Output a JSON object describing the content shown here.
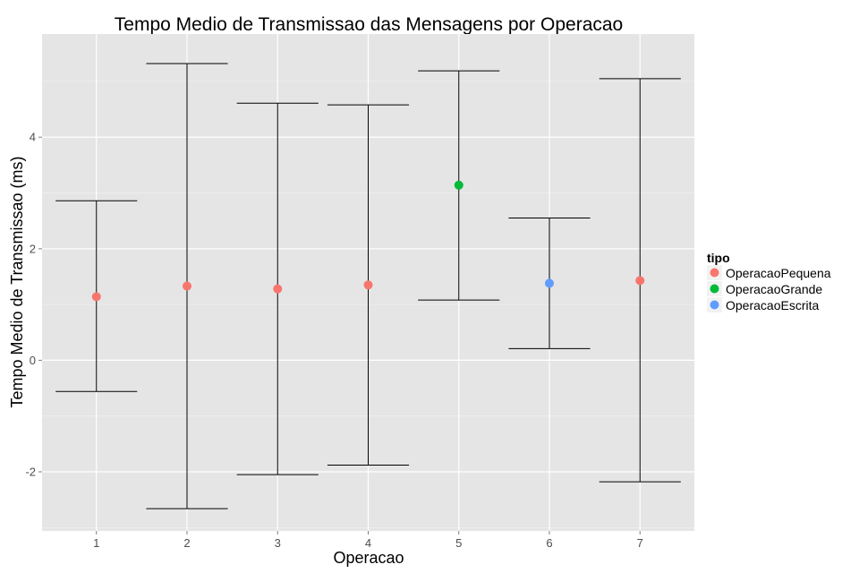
{
  "chart_data": {
    "type": "scatter",
    "title": "Tempo Medio de Transmissao das Mensagens por Operacao",
    "xlabel": "Operacao",
    "ylabel": "Tempo Medio de Transmissao (ms)",
    "categories": [
      "1",
      "2",
      "3",
      "4",
      "5",
      "6",
      "7"
    ],
    "ylim": [
      -3.06,
      5.85
    ],
    "yticks": [
      -2,
      0,
      2,
      4
    ],
    "ytick_labels": [
      "-2",
      "0",
      "2",
      "4"
    ],
    "grid": true,
    "legend": {
      "title": "tipo",
      "position": "right",
      "entries": [
        {
          "label": "OperacaoPequena",
          "color": "#F8766D"
        },
        {
          "label": "OperacaoGrande",
          "color": "#00BA38"
        },
        {
          "label": "OperacaoEscrita",
          "color": "#619CFF"
        }
      ]
    },
    "points": [
      {
        "x": "1",
        "mean": 1.14,
        "lower": -0.56,
        "upper": 2.86,
        "tipo": "OperacaoPequena"
      },
      {
        "x": "2",
        "mean": 1.33,
        "lower": -2.66,
        "upper": 5.32,
        "tipo": "OperacaoPequena"
      },
      {
        "x": "3",
        "mean": 1.28,
        "lower": -2.05,
        "upper": 4.61,
        "tipo": "OperacaoPequena"
      },
      {
        "x": "4",
        "mean": 1.35,
        "lower": -1.88,
        "upper": 4.58,
        "tipo": "OperacaoPequena"
      },
      {
        "x": "5",
        "mean": 3.14,
        "lower": 1.08,
        "upper": 5.19,
        "tipo": "OperacaoGrande"
      },
      {
        "x": "6",
        "mean": 1.38,
        "lower": 0.21,
        "upper": 2.55,
        "tipo": "OperacaoEscrita"
      },
      {
        "x": "7",
        "mean": 1.43,
        "lower": -2.18,
        "upper": 5.05,
        "tipo": "OperacaoPequena"
      }
    ]
  }
}
